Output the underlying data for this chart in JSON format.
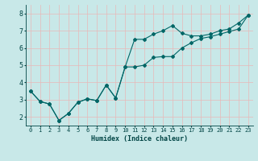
{
  "title": "",
  "xlabel": "Humidex (Indice chaleur)",
  "ylabel": "",
  "background_color": "#c8e8e8",
  "grid_color": "#e8b8b8",
  "line_color": "#006666",
  "x_values": [
    0,
    1,
    2,
    3,
    4,
    5,
    6,
    7,
    8,
    9,
    10,
    11,
    12,
    13,
    14,
    15,
    16,
    17,
    18,
    19,
    20,
    21,
    22,
    23
  ],
  "curve1_y": [
    3.5,
    2.9,
    2.75,
    1.8,
    2.2,
    2.85,
    3.05,
    2.95,
    3.85,
    3.1,
    4.9,
    6.5,
    6.5,
    6.8,
    7.0,
    7.3,
    6.85,
    6.7,
    6.7,
    6.8,
    7.0,
    7.1,
    7.45,
    7.9
  ],
  "curve2_y": [
    3.5,
    2.9,
    2.75,
    1.8,
    2.2,
    2.85,
    3.05,
    2.95,
    3.85,
    3.1,
    4.9,
    4.9,
    5.0,
    5.45,
    5.5,
    5.5,
    6.0,
    6.3,
    6.55,
    6.65,
    6.8,
    6.95,
    7.1,
    7.9
  ],
  "ylim": [
    1.5,
    8.5
  ],
  "xlim": [
    -0.5,
    23.5
  ],
  "yticks": [
    2,
    3,
    4,
    5,
    6,
    7,
    8
  ],
  "xticks": [
    0,
    1,
    2,
    3,
    4,
    5,
    6,
    7,
    8,
    9,
    10,
    11,
    12,
    13,
    14,
    15,
    16,
    17,
    18,
    19,
    20,
    21,
    22,
    23
  ],
  "marker": "D",
  "marker_size": 2,
  "line_width": 0.8
}
